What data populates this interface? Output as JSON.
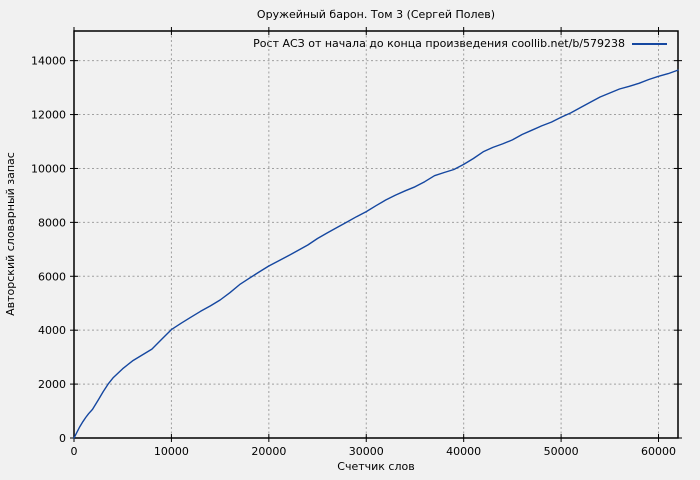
{
  "page": {
    "background": "#f1f1f1"
  },
  "chart_data": {
    "type": "line",
    "title": "Оружейный барон. Том 3 (Сергей Полев)",
    "xlabel": "Счетчик слов",
    "ylabel": "Авторский словарный запас",
    "xlim": [
      0,
      62000
    ],
    "ylim": [
      0,
      15100
    ],
    "xticks": [
      0,
      10000,
      20000,
      30000,
      40000,
      50000,
      60000
    ],
    "yticks": [
      0,
      2000,
      4000,
      6000,
      8000,
      10000,
      12000,
      14000
    ],
    "grid": true,
    "grid_style": "dashed",
    "legend_position": "top-right-inside",
    "colors": {
      "line": "#1547a0",
      "grid": "#a0a0a0",
      "border": "#000000",
      "text": "#000000",
      "background": "#f1f1f1"
    },
    "series": [
      {
        "name": "Рост АСЗ от начала до конца произведения coollib.net/b/579238",
        "color": "#1547a0",
        "points": [
          [
            0,
            0
          ],
          [
            300,
            210
          ],
          [
            600,
            420
          ],
          [
            900,
            600
          ],
          [
            1200,
            760
          ],
          [
            1500,
            900
          ],
          [
            1900,
            1060
          ],
          [
            2500,
            1420
          ],
          [
            3000,
            1720
          ],
          [
            3500,
            2000
          ],
          [
            4000,
            2230
          ],
          [
            5000,
            2570
          ],
          [
            6000,
            2860
          ],
          [
            7000,
            3080
          ],
          [
            8000,
            3300
          ],
          [
            9000,
            3660
          ],
          [
            10000,
            4020
          ],
          [
            11000,
            4260
          ],
          [
            12000,
            4480
          ],
          [
            13000,
            4700
          ],
          [
            14000,
            4900
          ],
          [
            15000,
            5120
          ],
          [
            16000,
            5390
          ],
          [
            17000,
            5690
          ],
          [
            18000,
            5930
          ],
          [
            19000,
            6160
          ],
          [
            20000,
            6380
          ],
          [
            21000,
            6570
          ],
          [
            22000,
            6760
          ],
          [
            23000,
            6960
          ],
          [
            24000,
            7160
          ],
          [
            25000,
            7400
          ],
          [
            26000,
            7610
          ],
          [
            27000,
            7810
          ],
          [
            28000,
            8010
          ],
          [
            29000,
            8210
          ],
          [
            30000,
            8400
          ],
          [
            31000,
            8620
          ],
          [
            32000,
            8830
          ],
          [
            33000,
            9010
          ],
          [
            34000,
            9170
          ],
          [
            35000,
            9320
          ],
          [
            36000,
            9510
          ],
          [
            37000,
            9730
          ],
          [
            38000,
            9850
          ],
          [
            39000,
            9960
          ],
          [
            40000,
            10150
          ],
          [
            41000,
            10370
          ],
          [
            42000,
            10620
          ],
          [
            43000,
            10780
          ],
          [
            44000,
            10910
          ],
          [
            45000,
            11060
          ],
          [
            46000,
            11260
          ],
          [
            47000,
            11420
          ],
          [
            48000,
            11580
          ],
          [
            49000,
            11720
          ],
          [
            50000,
            11900
          ],
          [
            51000,
            12060
          ],
          [
            52000,
            12260
          ],
          [
            53000,
            12460
          ],
          [
            54000,
            12650
          ],
          [
            55000,
            12800
          ],
          [
            56000,
            12950
          ],
          [
            57000,
            13050
          ],
          [
            58000,
            13160
          ],
          [
            59000,
            13300
          ],
          [
            60000,
            13420
          ],
          [
            61000,
            13520
          ],
          [
            62000,
            13650
          ]
        ]
      }
    ]
  }
}
